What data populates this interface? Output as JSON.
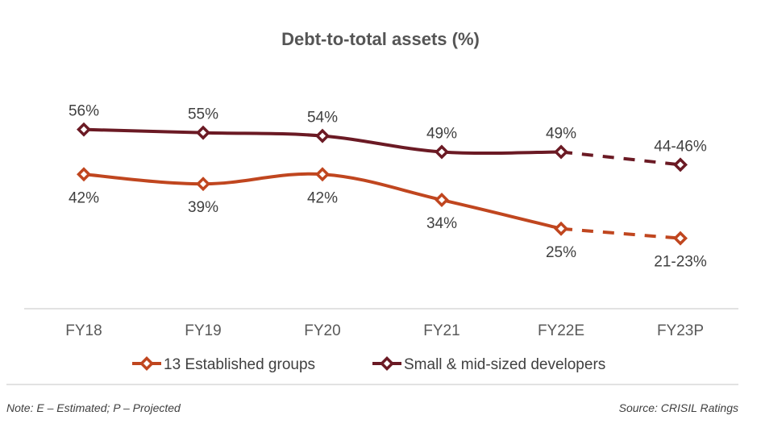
{
  "chart_data": {
    "type": "line",
    "title": "Debt-to-total assets (%)",
    "xlabel": "",
    "ylabel": "",
    "categories": [
      "FY18",
      "FY19",
      "FY20",
      "FY21",
      "FY22E",
      "FY23P"
    ],
    "ylim": [
      0,
      56
    ],
    "grid": false,
    "legend_position": "bottom",
    "series": [
      {
        "name": "13 Established groups",
        "color": "#C0461F",
        "values": [
          42,
          39,
          42,
          34,
          25,
          22
        ],
        "labels": [
          "42%",
          "39%",
          "42%",
          "34%",
          "25%",
          "21-23%"
        ],
        "label_position": "below",
        "projected_from_index": 4
      },
      {
        "name": "Small & mid-sized developers",
        "color": "#6B1A24",
        "values": [
          56,
          55,
          54,
          49,
          49,
          45
        ],
        "labels": [
          "56%",
          "55%",
          "54%",
          "49%",
          "49%",
          "44-46%"
        ],
        "label_position": "above",
        "projected_from_index": 4
      }
    ]
  },
  "footer": {
    "note": "Note: E – Estimated; P – Projected",
    "source": "Source: CRISIL Ratings"
  }
}
